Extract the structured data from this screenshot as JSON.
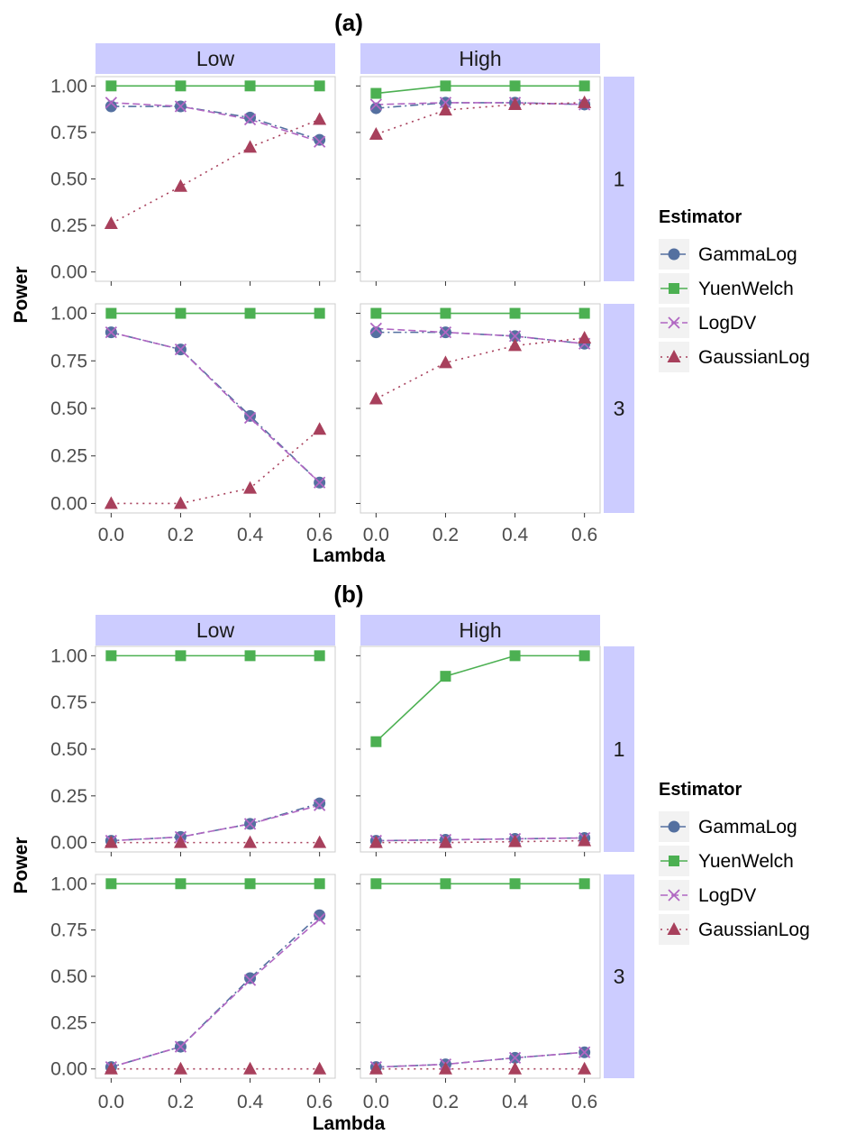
{
  "chart_data": [
    {
      "type": "line",
      "title": "(a)",
      "xlabel": "Lambda",
      "ylabel": "Power",
      "x": [
        0.0,
        0.2,
        0.4,
        0.6
      ],
      "x_tick_labels": [
        "0.0",
        "0.2",
        "0.4",
        "0.6"
      ],
      "y_tick_labels": [
        "0.00",
        "0.25",
        "0.50",
        "0.75",
        "1.00"
      ],
      "ylim": [
        0,
        1
      ],
      "col_facets": [
        "Low",
        "High"
      ],
      "row_facets": [
        "1",
        "3"
      ],
      "legend_title": "Estimator",
      "legend_position": "right",
      "panels": [
        {
          "col": "Low",
          "row": "1",
          "series": [
            {
              "name": "GammaLog",
              "values": [
                0.89,
                0.89,
                0.83,
                0.71
              ]
            },
            {
              "name": "YuenWelch",
              "values": [
                1.0,
                1.0,
                1.0,
                1.0
              ]
            },
            {
              "name": "LogDV",
              "values": [
                0.91,
                0.89,
                0.82,
                0.7
              ]
            },
            {
              "name": "GaussianLog",
              "values": [
                0.26,
                0.46,
                0.67,
                0.82
              ]
            }
          ]
        },
        {
          "col": "High",
          "row": "1",
          "series": [
            {
              "name": "GammaLog",
              "values": [
                0.88,
                0.91,
                0.91,
                0.9
              ]
            },
            {
              "name": "YuenWelch",
              "values": [
                0.96,
                1.0,
                1.0,
                1.0
              ]
            },
            {
              "name": "LogDV",
              "values": [
                0.9,
                0.91,
                0.91,
                0.9
              ]
            },
            {
              "name": "GaussianLog",
              "values": [
                0.74,
                0.87,
                0.9,
                0.91
              ]
            }
          ]
        },
        {
          "col": "Low",
          "row": "3",
          "series": [
            {
              "name": "GammaLog",
              "values": [
                0.9,
                0.81,
                0.46,
                0.11
              ]
            },
            {
              "name": "YuenWelch",
              "values": [
                1.0,
                1.0,
                1.0,
                1.0
              ]
            },
            {
              "name": "LogDV",
              "values": [
                0.9,
                0.81,
                0.45,
                0.11
              ]
            },
            {
              "name": "GaussianLog",
              "values": [
                0.0,
                0.0,
                0.08,
                0.39
              ]
            }
          ]
        },
        {
          "col": "High",
          "row": "3",
          "series": [
            {
              "name": "GammaLog",
              "values": [
                0.9,
                0.9,
                0.88,
                0.84
              ]
            },
            {
              "name": "YuenWelch",
              "values": [
                1.0,
                1.0,
                1.0,
                1.0
              ]
            },
            {
              "name": "LogDV",
              "values": [
                0.92,
                0.9,
                0.88,
                0.84
              ]
            },
            {
              "name": "GaussianLog",
              "values": [
                0.55,
                0.74,
                0.83,
                0.87
              ]
            }
          ]
        }
      ]
    },
    {
      "type": "line",
      "title": "(b)",
      "xlabel": "Lambda",
      "ylabel": "Power",
      "x": [
        0.0,
        0.2,
        0.4,
        0.6
      ],
      "x_tick_labels": [
        "0.0",
        "0.2",
        "0.4",
        "0.6"
      ],
      "y_tick_labels": [
        "0.00",
        "0.25",
        "0.50",
        "0.75",
        "1.00"
      ],
      "ylim": [
        0,
        1
      ],
      "col_facets": [
        "Low",
        "High"
      ],
      "row_facets": [
        "1",
        "3"
      ],
      "legend_title": "Estimator",
      "legend_position": "right",
      "panels": [
        {
          "col": "Low",
          "row": "1",
          "series": [
            {
              "name": "GammaLog",
              "values": [
                0.01,
                0.03,
                0.1,
                0.21
              ]
            },
            {
              "name": "YuenWelch",
              "values": [
                1.0,
                1.0,
                1.0,
                1.0
              ]
            },
            {
              "name": "LogDV",
              "values": [
                0.01,
                0.03,
                0.1,
                0.2
              ]
            },
            {
              "name": "GaussianLog",
              "values": [
                0.0,
                0.0,
                0.0,
                0.0
              ]
            }
          ]
        },
        {
          "col": "High",
          "row": "1",
          "series": [
            {
              "name": "GammaLog",
              "values": [
                0.01,
                0.015,
                0.02,
                0.025
              ]
            },
            {
              "name": "YuenWelch",
              "values": [
                0.54,
                0.89,
                1.0,
                1.0
              ]
            },
            {
              "name": "LogDV",
              "values": [
                0.01,
                0.015,
                0.02,
                0.025
              ]
            },
            {
              "name": "GaussianLog",
              "values": [
                0.0,
                0.0,
                0.005,
                0.01
              ]
            }
          ]
        },
        {
          "col": "Low",
          "row": "3",
          "series": [
            {
              "name": "GammaLog",
              "values": [
                0.01,
                0.12,
                0.49,
                0.83
              ]
            },
            {
              "name": "YuenWelch",
              "values": [
                1.0,
                1.0,
                1.0,
                1.0
              ]
            },
            {
              "name": "LogDV",
              "values": [
                0.01,
                0.12,
                0.48,
                0.81
              ]
            },
            {
              "name": "GaussianLog",
              "values": [
                0.0,
                0.0,
                0.0,
                0.0
              ]
            }
          ]
        },
        {
          "col": "High",
          "row": "3",
          "series": [
            {
              "name": "GammaLog",
              "values": [
                0.01,
                0.025,
                0.06,
                0.09
              ]
            },
            {
              "name": "YuenWelch",
              "values": [
                1.0,
                1.0,
                1.0,
                1.0
              ]
            },
            {
              "name": "LogDV",
              "values": [
                0.01,
                0.025,
                0.06,
                0.09
              ]
            },
            {
              "name": "GaussianLog",
              "values": [
                0.0,
                0.0,
                0.0,
                0.0
              ]
            }
          ]
        }
      ]
    }
  ],
  "series_styles": {
    "GammaLog": {
      "color": "#5470a0",
      "marker": "circle",
      "line": "dashdot"
    },
    "YuenWelch": {
      "color": "#4cb052",
      "marker": "square",
      "line": "solid"
    },
    "LogDV": {
      "color": "#b066c2",
      "marker": "x",
      "line": "dashed"
    },
    "GaussianLog": {
      "color": "#a8405c",
      "marker": "triangle",
      "line": "dotted"
    }
  },
  "colors": {
    "strip_fill": "#ccccff",
    "panel_border": "#cccccc",
    "tick_text": "#4d4d4d"
  }
}
